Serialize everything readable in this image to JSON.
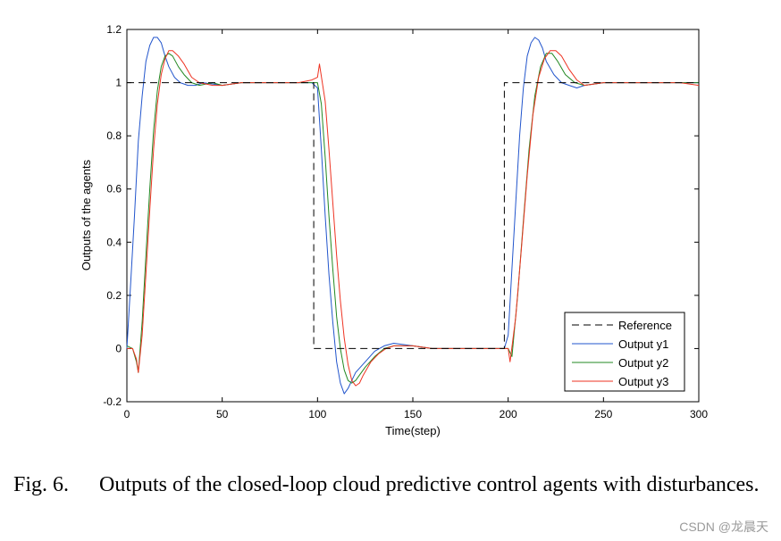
{
  "chart_data": {
    "type": "line",
    "title": "",
    "xlabel": "Time(step)",
    "ylabel": "Outputs of the agents",
    "xlim": [
      0,
      300
    ],
    "ylim": [
      -0.2,
      1.2
    ],
    "xticks": [
      0,
      50,
      100,
      150,
      200,
      250,
      300
    ],
    "yticks": [
      -0.2,
      0,
      0.2,
      0.4,
      0.6,
      0.8,
      1,
      1.2
    ],
    "xtick_labels": [
      "0",
      "50",
      "100",
      "150",
      "200",
      "250",
      "300"
    ],
    "ytick_labels": [
      "-0.2",
      "0",
      "0.2",
      "0.4",
      "0.6",
      "0.8",
      "1",
      "1.2"
    ],
    "legend_position": "bottom-right",
    "series": [
      {
        "name": "Reference",
        "color": "#000000",
        "style": "dashed",
        "x": [
          0,
          2,
          2,
          98,
          98,
          198,
          198,
          300
        ],
        "y": [
          1,
          1,
          1,
          1,
          0,
          0,
          1,
          1
        ]
      },
      {
        "name": "Output y1",
        "color": "#2255cc",
        "style": "solid",
        "x": [
          0,
          2,
          4,
          6,
          8,
          10,
          12,
          14,
          16,
          18,
          20,
          22,
          25,
          28,
          32,
          36,
          40,
          50,
          60,
          70,
          80,
          90,
          97,
          100,
          102,
          104,
          106,
          108,
          110,
          112,
          114,
          116,
          118,
          120,
          125,
          130,
          135,
          140,
          150,
          160,
          170,
          180,
          190,
          198,
          200,
          202,
          204,
          206,
          208,
          210,
          212,
          214,
          216,
          218,
          220,
          224,
          228,
          232,
          236,
          240,
          250,
          260,
          270,
          280,
          290,
          300
        ],
        "y": [
          0,
          0.25,
          0.5,
          0.78,
          0.95,
          1.08,
          1.14,
          1.17,
          1.17,
          1.15,
          1.1,
          1.06,
          1.02,
          1.0,
          0.99,
          0.99,
          1.0,
          0.99,
          1.0,
          1.0,
          1.0,
          1.0,
          1.0,
          0.98,
          0.75,
          0.5,
          0.28,
          0.1,
          -0.05,
          -0.13,
          -0.17,
          -0.15,
          -0.12,
          -0.09,
          -0.05,
          -0.01,
          0.01,
          0.02,
          0.01,
          0.0,
          0.0,
          0.0,
          0.0,
          0.0,
          0.05,
          0.3,
          0.55,
          0.8,
          0.98,
          1.1,
          1.15,
          1.17,
          1.16,
          1.13,
          1.08,
          1.03,
          1.0,
          0.99,
          0.98,
          0.99,
          1.0,
          1.0,
          1.0,
          1.0,
          1.0,
          1.0
        ]
      },
      {
        "name": "Output y2",
        "color": "#228822",
        "style": "solid",
        "x": [
          0,
          3,
          5,
          6,
          8,
          10,
          12,
          14,
          16,
          18,
          20,
          22,
          24,
          27,
          30,
          34,
          38,
          45,
          50,
          60,
          70,
          80,
          90,
          100,
          102,
          104,
          106,
          108,
          110,
          112,
          114,
          116,
          118,
          120,
          122,
          125,
          130,
          135,
          140,
          150,
          160,
          170,
          180,
          190,
          200,
          202,
          205,
          208,
          211,
          214,
          217,
          220,
          223,
          226,
          230,
          235,
          240,
          250,
          260,
          270,
          280,
          290,
          300
        ],
        "y": [
          0.01,
          0.0,
          -0.05,
          -0.09,
          0.1,
          0.35,
          0.6,
          0.82,
          0.97,
          1.06,
          1.1,
          1.11,
          1.1,
          1.06,
          1.03,
          1.0,
          0.99,
          1.0,
          0.99,
          1.0,
          1.0,
          1.0,
          1.0,
          1.0,
          0.92,
          0.72,
          0.5,
          0.3,
          0.12,
          0.0,
          -0.08,
          -0.12,
          -0.13,
          -0.12,
          -0.1,
          -0.07,
          -0.03,
          0.0,
          0.01,
          0.01,
          0.0,
          0.0,
          0.0,
          0.0,
          0.0,
          -0.03,
          0.2,
          0.48,
          0.75,
          0.95,
          1.06,
          1.11,
          1.11,
          1.08,
          1.03,
          1.0,
          0.99,
          1.0,
          1.0,
          1.0,
          1.0,
          1.0,
          1.0
        ]
      },
      {
        "name": "Output y3",
        "color": "#ee3322",
        "style": "solid",
        "x": [
          0,
          3,
          5,
          6,
          8,
          10,
          12,
          14,
          16,
          18,
          20,
          22,
          24,
          27,
          30,
          34,
          38,
          45,
          50,
          60,
          70,
          80,
          90,
          97,
          100,
          101,
          104,
          106,
          108,
          110,
          112,
          114,
          116,
          118,
          120,
          122,
          124,
          128,
          132,
          136,
          140,
          150,
          160,
          170,
          180,
          190,
          198,
          200,
          201,
          204,
          207,
          210,
          213,
          216,
          219,
          222,
          225,
          228,
          232,
          236,
          240,
          250,
          260,
          270,
          280,
          290,
          300
        ],
        "y": [
          0.0,
          0.0,
          -0.04,
          -0.09,
          0.05,
          0.28,
          0.52,
          0.75,
          0.92,
          1.03,
          1.09,
          1.12,
          1.12,
          1.1,
          1.07,
          1.02,
          1.0,
          0.99,
          0.99,
          1.0,
          1.0,
          1.0,
          1.0,
          1.01,
          1.02,
          1.07,
          0.93,
          0.75,
          0.55,
          0.35,
          0.18,
          0.04,
          -0.06,
          -0.12,
          -0.14,
          -0.13,
          -0.1,
          -0.05,
          -0.02,
          0.0,
          0.01,
          0.01,
          0.0,
          0.0,
          0.0,
          0.0,
          0.0,
          0.0,
          -0.05,
          0.12,
          0.38,
          0.65,
          0.88,
          1.02,
          1.09,
          1.12,
          1.12,
          1.1,
          1.05,
          1.01,
          0.99,
          1.0,
          1.0,
          1.0,
          1.0,
          1.0,
          0.99
        ]
      }
    ]
  },
  "caption": {
    "fig_label": "Fig. 6.",
    "text": "Outputs of the closed-loop cloud predictive control agents with disturbances."
  },
  "watermark": "CSDN @龙晨天"
}
